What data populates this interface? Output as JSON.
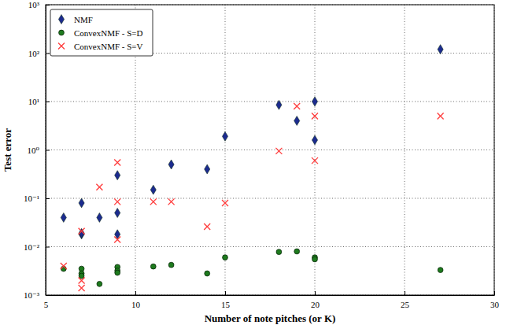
{
  "chart_data": {
    "type": "scatter",
    "x_label": "Number of note pitches (or K)",
    "y_label": "Test error",
    "x": [
      6,
      7,
      7,
      7,
      8,
      9,
      9,
      9,
      11,
      12,
      14,
      15,
      18,
      19,
      20,
      20,
      27
    ],
    "series": [
      {
        "name": "NMF",
        "color": "#1c2b8f",
        "marker": "diamond",
        "values": [
          0.04,
          0.08,
          0.018,
          0.019,
          0.04,
          0.3,
          0.05,
          0.018,
          0.15,
          0.5,
          0.4,
          1.9,
          8.5,
          4,
          10,
          1.6,
          120
        ]
      },
      {
        "name": "ConvexNMF - S=D",
        "color": "#1e7b1e",
        "marker": "circle",
        "values": [
          0.0035,
          0.0035,
          0.0028,
          0.0025,
          0.0017,
          0.0038,
          0.0032,
          0.0029,
          0.0039,
          0.0042,
          0.0028,
          0.006,
          0.0078,
          0.008,
          0.006,
          0.0055,
          0.0033
        ]
      },
      {
        "name": "ConvexNMF - S=V",
        "color": "#ff3b3b",
        "marker": "x",
        "values": [
          0.004,
          0.021,
          0.002,
          0.0014,
          0.17,
          0.55,
          0.085,
          0.014,
          0.085,
          0.085,
          0.026,
          0.08,
          0.95,
          8,
          5,
          0.6,
          5
        ]
      }
    ],
    "xlim": [
      5,
      30
    ],
    "ylim": [
      0.001,
      1000
    ],
    "xticks": [
      5,
      10,
      15,
      20,
      25,
      30
    ],
    "yticks": [
      {
        "value": 0.001,
        "label": "10⁻³"
      },
      {
        "value": 0.01,
        "label": "10⁻²"
      },
      {
        "value": 0.1,
        "label": "10⁻¹"
      },
      {
        "value": 1,
        "label": "10⁰"
      },
      {
        "value": 10,
        "label": "10¹"
      },
      {
        "value": 100,
        "label": "10²"
      },
      {
        "value": 1000,
        "label": "10³"
      }
    ],
    "log": "y",
    "grid": true,
    "legend": "upper-left"
  }
}
